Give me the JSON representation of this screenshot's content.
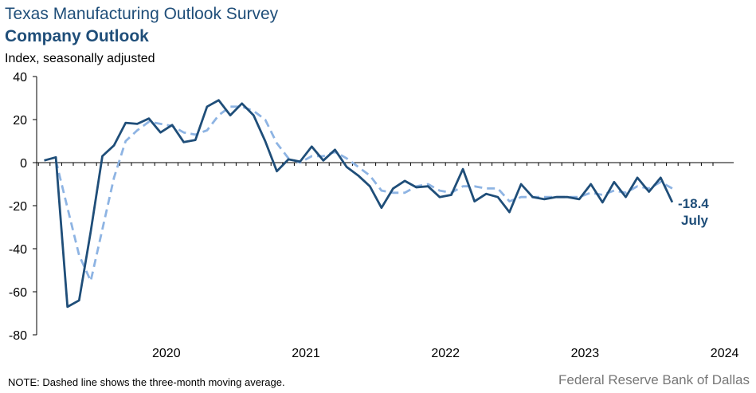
{
  "header": {
    "title": "Texas Manufacturing Outlook Survey",
    "subtitle": "Company Outlook",
    "ylabel": "Index, seasonally adjusted"
  },
  "footer": {
    "note": "NOTE: Dashed line shows the three-month  moving average.",
    "source": "Federal Reserve Bank of Dallas"
  },
  "callout": {
    "value": "-18.4",
    "month": "July"
  },
  "colors": {
    "series": "#1f4e79",
    "moving_average": "#8eb4e3",
    "axis": "#000000"
  },
  "chart_data": {
    "type": "line",
    "title": "Company Outlook",
    "ylabel": "Index, seasonally adjusted",
    "ylim": [
      -80,
      40
    ],
    "yticks": [
      40,
      20,
      0,
      -20,
      -40,
      -60,
      -80
    ],
    "xticks": [
      "2020",
      "2021",
      "2022",
      "2023",
      "2024"
    ],
    "x_start": "2019-08",
    "x_end": "2024-07",
    "grid": false,
    "series": [
      {
        "style": "solid",
        "values": [
          1,
          2.5,
          -67,
          -64,
          -32,
          3,
          8,
          18.5,
          18,
          20.5,
          14,
          17.5,
          9.5,
          10.5,
          26,
          29,
          22,
          27.5,
          22,
          10,
          -4,
          1.5,
          0.5,
          7.5,
          1,
          6,
          -2,
          -6,
          -11,
          -21,
          -12,
          -8.5,
          -11.5,
          -11,
          -16,
          -15,
          -3,
          -18,
          -14.5,
          -16,
          -23,
          -10,
          -16,
          -17,
          -16,
          -16,
          -17,
          -10,
          -18.5,
          -9,
          -16,
          -7,
          -13.5,
          -7,
          -18.4
        ],
        "note": "Last observation -18.4, July 2024"
      },
      {
        "style": "dashed",
        "values": [
          null,
          1,
          -21,
          -43,
          -55,
          -31,
          -7,
          10,
          15,
          19,
          18,
          17,
          14,
          13,
          15,
          22,
          26,
          26,
          24,
          20,
          9,
          2,
          0,
          3,
          3,
          5,
          2,
          -2,
          -6,
          -13,
          -14,
          -14,
          -11,
          -10,
          -13,
          -14,
          -11,
          -11,
          -12,
          -12,
          -18,
          -16,
          -16,
          -16,
          -16,
          -16,
          -16,
          -14,
          -15,
          -13,
          -14,
          -11,
          -12,
          -9,
          -12
        ]
      }
    ]
  }
}
